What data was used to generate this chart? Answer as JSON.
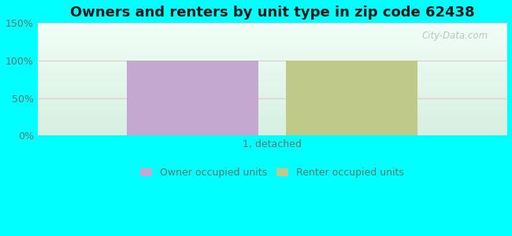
{
  "title": "Owners and renters by unit type in zip code 62438",
  "categories": [
    "1, detached"
  ],
  "owner_values": [
    100
  ],
  "renter_values": [
    100
  ],
  "owner_color": "#c4a8d0",
  "renter_color": "#bec98a",
  "bg_color_top": "#eafaf5",
  "bg_color_bottom": "#d6f5e5",
  "outer_bg": "#00ffff",
  "ylim": [
    0,
    150
  ],
  "yticks": [
    0,
    50,
    100,
    150
  ],
  "ytick_labels": [
    "0%",
    "50%",
    "100%",
    "150%"
  ],
  "tick_fontsize": 9,
  "title_fontsize": 13,
  "legend_label_owner": "Owner occupied units",
  "legend_label_renter": "Renter occupied units",
  "watermark": "City-Data.com",
  "bar_width": 0.28,
  "bar_gap": 0.06,
  "tick_color": "#5a7a6e",
  "grid_color": "#e8c8d8",
  "title_color": "#1a1a1a"
}
